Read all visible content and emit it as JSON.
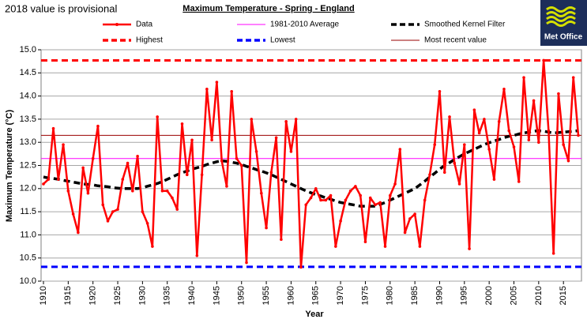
{
  "chart_data": {
    "type": "line",
    "title": "Maximum Temperature - Spring - England",
    "note": "2018 value is provisional",
    "logo_text": "Met Office",
    "xlabel": "Year",
    "ylabel": "Maximum Temperature (°C)",
    "x": [
      1910,
      1911,
      1912,
      1913,
      1914,
      1915,
      1916,
      1917,
      1918,
      1919,
      1920,
      1921,
      1922,
      1923,
      1924,
      1925,
      1926,
      1927,
      1928,
      1929,
      1930,
      1931,
      1932,
      1933,
      1934,
      1935,
      1936,
      1937,
      1938,
      1939,
      1940,
      1941,
      1942,
      1943,
      1944,
      1945,
      1946,
      1947,
      1948,
      1949,
      1950,
      1951,
      1952,
      1953,
      1954,
      1955,
      1956,
      1957,
      1958,
      1959,
      1960,
      1961,
      1962,
      1963,
      1964,
      1965,
      1966,
      1967,
      1968,
      1969,
      1970,
      1971,
      1972,
      1973,
      1974,
      1975,
      1976,
      1977,
      1978,
      1979,
      1980,
      1981,
      1982,
      1983,
      1984,
      1985,
      1986,
      1987,
      1988,
      1989,
      1990,
      1991,
      1992,
      1993,
      1994,
      1995,
      1996,
      1997,
      1998,
      1999,
      2000,
      2001,
      2002,
      2003,
      2004,
      2005,
      2006,
      2007,
      2008,
      2009,
      2010,
      2011,
      2012,
      2013,
      2014,
      2015,
      2016,
      2017,
      2018
    ],
    "xlim": [
      1910,
      2018
    ],
    "xticks": [
      1910,
      1915,
      1920,
      1925,
      1930,
      1935,
      1940,
      1945,
      1950,
      1955,
      1960,
      1965,
      1970,
      1975,
      1980,
      1985,
      1990,
      1995,
      2000,
      2005,
      2010,
      2015
    ],
    "ylim": [
      10,
      15
    ],
    "yticks": [
      {
        "value": 10,
        "label": "10.0"
      },
      10.5,
      {
        "value": 11,
        "label": "11.0"
      },
      11.5,
      {
        "value": 12,
        "label": "12.0"
      },
      12.5,
      {
        "value": 13,
        "label": "13.0"
      },
      13.5,
      {
        "value": 14,
        "label": "14.0"
      },
      14.5,
      {
        "value": 15,
        "label": "15.0"
      }
    ],
    "grid": true,
    "series": [
      {
        "name": "Data",
        "color": "#ff0000",
        "marker": true,
        "values": [
          12.1,
          12.2,
          13.3,
          12.2,
          12.95,
          11.95,
          11.45,
          11.05,
          12.45,
          11.9,
          12.65,
          13.35,
          11.65,
          11.3,
          11.5,
          11.55,
          12.2,
          12.55,
          11.95,
          12.7,
          11.5,
          11.25,
          10.75,
          13.55,
          11.95,
          11.95,
          11.8,
          11.55,
          13.4,
          12.3,
          13.05,
          10.55,
          12.3,
          14.15,
          13.05,
          14.3,
          12.6,
          12.05,
          14.1,
          12.65,
          12.5,
          10.4,
          13.5,
          12.8,
          11.9,
          11.15,
          12.35,
          13.1,
          10.9,
          13.45,
          12.8,
          13.5,
          10.3,
          11.65,
          11.8,
          12.0,
          11.75,
          11.75,
          11.85,
          10.75,
          11.3,
          11.75,
          11.95,
          12.05,
          11.85,
          10.85,
          11.8,
          11.65,
          11.7,
          10.75,
          11.85,
          12.1,
          12.85,
          11.05,
          11.35,
          11.45,
          10.75,
          11.75,
          12.3,
          12.95,
          14.1,
          12.35,
          13.55,
          12.55,
          12.1,
          12.95,
          10.7,
          13.7,
          13.2,
          13.5,
          12.85,
          12.2,
          13.45,
          14.15,
          13.25,
          12.9,
          12.15,
          14.4,
          13.05,
          13.9,
          13.0,
          14.77,
          13.25,
          10.6,
          14.05,
          12.95,
          12.6,
          14.4,
          13.15
        ]
      },
      {
        "name": "Smoothed Kernel Filter",
        "color": "#000000",
        "dash": true,
        "values": [
          12.25,
          12.23,
          12.22,
          12.2,
          12.18,
          12.16,
          12.14,
          12.12,
          12.1,
          12.09,
          12.08,
          12.06,
          12.05,
          12.04,
          12.02,
          12.01,
          12.0,
          12.0,
          12.0,
          12.0,
          12.02,
          12.05,
          12.08,
          12.11,
          12.15,
          12.2,
          12.25,
          12.3,
          12.34,
          12.38,
          12.42,
          12.45,
          12.48,
          12.52,
          12.55,
          12.58,
          12.6,
          12.59,
          12.57,
          12.55,
          12.52,
          12.48,
          12.45,
          12.41,
          12.38,
          12.34,
          12.3,
          12.25,
          12.2,
          12.15,
          12.1,
          12.05,
          12.0,
          11.95,
          11.91,
          11.87,
          11.84,
          11.8,
          11.77,
          11.73,
          11.7,
          11.68,
          11.66,
          11.64,
          11.62,
          11.62,
          11.62,
          11.62,
          11.66,
          11.7,
          11.75,
          11.8,
          11.85,
          11.9,
          11.95,
          12.0,
          12.08,
          12.16,
          12.25,
          12.33,
          12.42,
          12.5,
          12.56,
          12.63,
          12.69,
          12.75,
          12.8,
          12.85,
          12.9,
          12.95,
          12.99,
          13.03,
          13.06,
          13.1,
          13.13,
          13.15,
          13.18,
          13.2,
          13.22,
          13.24,
          13.25,
          13.24,
          13.22,
          13.2,
          13.21,
          13.22,
          13.23,
          13.24,
          13.25
        ]
      }
    ],
    "reference_lines": [
      {
        "name": "1981-2010 Average",
        "color": "#ff00ff",
        "value": 12.65
      },
      {
        "name": "Highest",
        "color": "#ff0000",
        "dash": true,
        "value": 14.77
      },
      {
        "name": "Lowest",
        "color": "#0000ff",
        "dash": true,
        "value": 10.31
      },
      {
        "name": "Most recent value",
        "color": "#990000",
        "value": 13.15
      }
    ]
  }
}
